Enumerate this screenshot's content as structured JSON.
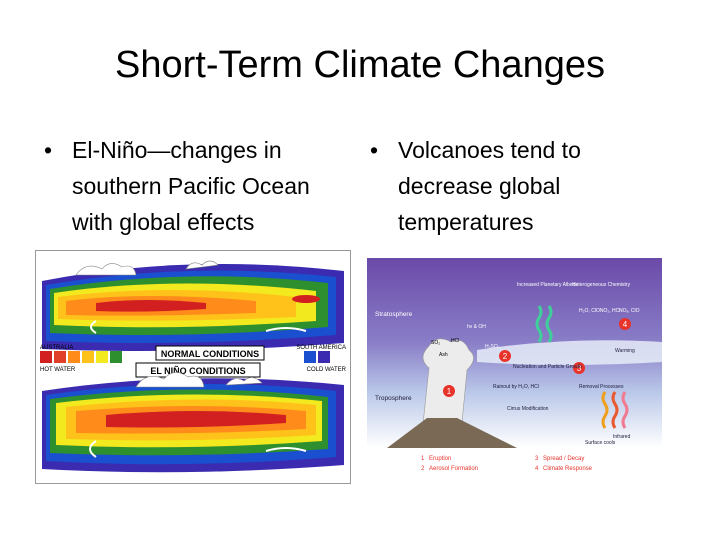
{
  "slide": {
    "title": "Short-Term Climate Changes",
    "bullets": [
      {
        "symbol": "•",
        "text": "El-Niño—changes in southern Pacific Ocean with global effects"
      },
      {
        "symbol": "•",
        "text": "Volcanoes tend to decrease global temperatures"
      }
    ]
  },
  "elnino_figure": {
    "normal_label": "NORMAL CONDITIONS",
    "elnino_label": "EL NIÑO CONDITIONS",
    "australia": "AUSTRALIA",
    "south_america": "SOUTH AMERICA",
    "hot_water": "HOT WATER",
    "cold_water": "COLD WATER",
    "legend_colors": [
      "#d22020",
      "#e0402a",
      "#ff8c1a",
      "#ffc21a",
      "#f2e91e",
      "#2e8f2e",
      "#1a4fd0",
      "#3b2bb0"
    ]
  },
  "volcano_figure": {
    "stratosphere": "Stratosphere",
    "troposphere": "Troposphere",
    "increased_albedo": "Increased Planetary Albedo",
    "heterogeneous_chemistry": "Heterogeneous Chemistry",
    "chem_list": "H₂O, ClONO₂, HCl",
    "chem_right": "NOₓ, ClO",
    "hv_oh": "hν & OH",
    "so2": "SO₂",
    "hcl": "HCl",
    "ash": "Ash",
    "h2so4": "H₂SO₄",
    "nucleation": "Nucleation and Particle Growth",
    "warming": "Warming",
    "rainout_left": "Rainout by H₂O, HCl",
    "rainout_right": "Removal Processes",
    "infrared": "Infrared",
    "cirrus": "Cirrus Modification",
    "surface_cools": "Surface cools",
    "markers": [
      "1",
      "2",
      "3",
      "4"
    ],
    "legend": [
      {
        "num": "1",
        "label": "Eruption"
      },
      {
        "num": "2",
        "label": "Aerosol Formation"
      },
      {
        "num": "3",
        "label": "Spread / Decay"
      },
      {
        "num": "4",
        "label": "Climate Response"
      }
    ],
    "marker_color": "#e8332a"
  }
}
